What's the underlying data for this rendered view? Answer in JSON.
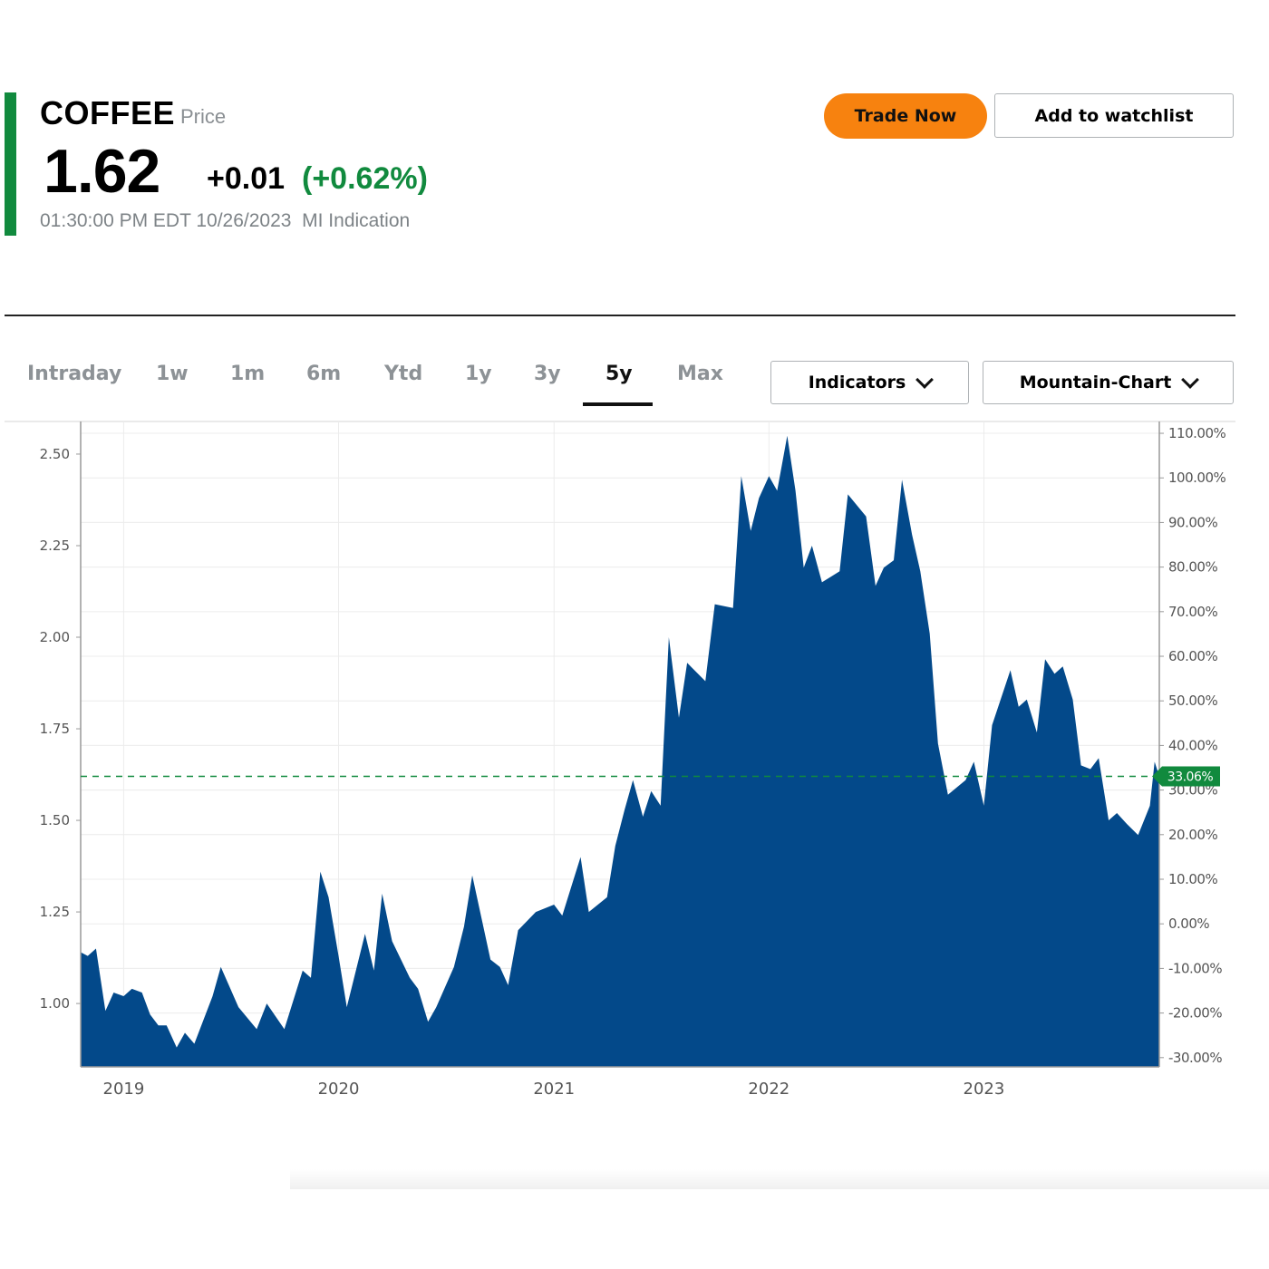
{
  "header": {
    "symbol": "COFFEE",
    "price_type": "Price",
    "price": "1.62",
    "change": "+0.01",
    "change_pct": "(+0.62%)",
    "timestamp": "01:30:00 PM EDT 10/26/2023  MI Indication",
    "accent_color": "#118a3e"
  },
  "actions": {
    "trade_now": "Trade Now",
    "add_watchlist": "Add to watchlist",
    "trade_color": "#f7820f"
  },
  "tabs": [
    {
      "label": "Intraday"
    },
    {
      "label": "1w"
    },
    {
      "label": "1m"
    },
    {
      "label": "6m"
    },
    {
      "label": "Ytd"
    },
    {
      "label": "1y"
    },
    {
      "label": "3y"
    },
    {
      "label": "5y",
      "active": true
    },
    {
      "label": "Max"
    }
  ],
  "dropdowns": {
    "indicators": "Indicators",
    "chart_type": "Mountain-Chart"
  },
  "chart_data": {
    "type": "area",
    "fill_color": "#03498a",
    "xlim": [
      "2018-10-20",
      "2023-10-26"
    ],
    "x_ticks": [
      "2019",
      "2020",
      "2021",
      "2022",
      "2023"
    ],
    "ylim": [
      0.827,
      2.589
    ],
    "y_ticks": [
      "1.00",
      "1.25",
      "1.50",
      "1.75",
      "2.00",
      "2.25",
      "2.50"
    ],
    "y2_base_price": 1.2175,
    "y2_ticks": [
      "-30.00%",
      "-20.00%",
      "-10.00%",
      "0.00%",
      "10.00%",
      "20.00%",
      "30.00%",
      "40.00%",
      "50.00%",
      "60.00%",
      "70.00%",
      "80.00%",
      "90.00%",
      "100.00%",
      "110.00%"
    ],
    "current_price": 1.62,
    "current_label": "33.06%",
    "current_color": "#118a3e",
    "grid": true,
    "points": [
      [
        "2018-10-20",
        1.14
      ],
      [
        "2018-11-01",
        1.13
      ],
      [
        "2018-11-15",
        1.15
      ],
      [
        "2018-12-01",
        0.98
      ],
      [
        "2018-12-15",
        1.03
      ],
      [
        "2019-01-01",
        1.02
      ],
      [
        "2019-01-15",
        1.04
      ],
      [
        "2019-02-01",
        1.03
      ],
      [
        "2019-02-15",
        0.97
      ],
      [
        "2019-03-01",
        0.94
      ],
      [
        "2019-03-15",
        0.94
      ],
      [
        "2019-04-01",
        0.88
      ],
      [
        "2019-04-15",
        0.92
      ],
      [
        "2019-05-01",
        0.89
      ],
      [
        "2019-06-01",
        1.02
      ],
      [
        "2019-06-15",
        1.1
      ],
      [
        "2019-07-15",
        0.99
      ],
      [
        "2019-08-15",
        0.93
      ],
      [
        "2019-09-01",
        1.0
      ],
      [
        "2019-10-01",
        0.93
      ],
      [
        "2019-11-01",
        1.09
      ],
      [
        "2019-11-15",
        1.07
      ],
      [
        "2019-12-01",
        1.36
      ],
      [
        "2019-12-15",
        1.29
      ],
      [
        "2020-01-01",
        1.13
      ],
      [
        "2020-01-15",
        0.99
      ],
      [
        "2020-02-15",
        1.19
      ],
      [
        "2020-03-01",
        1.09
      ],
      [
        "2020-03-15",
        1.3
      ],
      [
        "2020-04-01",
        1.17
      ],
      [
        "2020-05-01",
        1.07
      ],
      [
        "2020-05-15",
        1.04
      ],
      [
        "2020-06-01",
        0.95
      ],
      [
        "2020-06-15",
        0.99
      ],
      [
        "2020-07-15",
        1.1
      ],
      [
        "2020-08-01",
        1.21
      ],
      [
        "2020-08-15",
        1.35
      ],
      [
        "2020-09-15",
        1.12
      ],
      [
        "2020-10-01",
        1.1
      ],
      [
        "2020-10-15",
        1.05
      ],
      [
        "2020-11-01",
        1.2
      ],
      [
        "2020-12-01",
        1.25
      ],
      [
        "2021-01-01",
        1.27
      ],
      [
        "2021-01-15",
        1.24
      ],
      [
        "2021-02-15",
        1.4
      ],
      [
        "2021-03-01",
        1.25
      ],
      [
        "2021-04-01",
        1.29
      ],
      [
        "2021-04-15",
        1.43
      ],
      [
        "2021-05-01",
        1.53
      ],
      [
        "2021-05-15",
        1.61
      ],
      [
        "2021-06-01",
        1.51
      ],
      [
        "2021-06-15",
        1.58
      ],
      [
        "2021-07-01",
        1.54
      ],
      [
        "2021-07-15",
        2.0
      ],
      [
        "2021-08-01",
        1.78
      ],
      [
        "2021-08-15",
        1.93
      ],
      [
        "2021-09-15",
        1.88
      ],
      [
        "2021-10-01",
        2.09
      ],
      [
        "2021-11-01",
        2.08
      ],
      [
        "2021-11-15",
        2.44
      ],
      [
        "2021-12-01",
        2.29
      ],
      [
        "2021-12-15",
        2.38
      ],
      [
        "2022-01-01",
        2.44
      ],
      [
        "2022-01-15",
        2.4
      ],
      [
        "2022-02-01",
        2.55
      ],
      [
        "2022-02-15",
        2.4
      ],
      [
        "2022-03-01",
        2.19
      ],
      [
        "2022-03-15",
        2.25
      ],
      [
        "2022-04-01",
        2.15
      ],
      [
        "2022-05-01",
        2.18
      ],
      [
        "2022-05-15",
        2.39
      ],
      [
        "2022-06-15",
        2.33
      ],
      [
        "2022-07-01",
        2.14
      ],
      [
        "2022-07-15",
        2.19
      ],
      [
        "2022-08-01",
        2.21
      ],
      [
        "2022-08-15",
        2.43
      ],
      [
        "2022-09-01",
        2.28
      ],
      [
        "2022-09-15",
        2.18
      ],
      [
        "2022-10-01",
        2.01
      ],
      [
        "2022-10-15",
        1.71
      ],
      [
        "2022-11-01",
        1.57
      ],
      [
        "2022-12-01",
        1.61
      ],
      [
        "2022-12-15",
        1.66
      ],
      [
        "2023-01-01",
        1.54
      ],
      [
        "2023-01-15",
        1.76
      ],
      [
        "2023-02-15",
        1.91
      ],
      [
        "2023-03-01",
        1.81
      ],
      [
        "2023-03-15",
        1.83
      ],
      [
        "2023-04-01",
        1.74
      ],
      [
        "2023-04-15",
        1.94
      ],
      [
        "2023-05-01",
        1.9
      ],
      [
        "2023-05-15",
        1.92
      ],
      [
        "2023-06-01",
        1.83
      ],
      [
        "2023-06-15",
        1.65
      ],
      [
        "2023-07-01",
        1.64
      ],
      [
        "2023-07-15",
        1.67
      ],
      [
        "2023-08-01",
        1.5
      ],
      [
        "2023-08-15",
        1.52
      ],
      [
        "2023-09-01",
        1.49
      ],
      [
        "2023-09-20",
        1.46
      ],
      [
        "2023-10-10",
        1.54
      ],
      [
        "2023-10-18",
        1.66
      ],
      [
        "2023-10-26",
        1.62
      ]
    ]
  }
}
